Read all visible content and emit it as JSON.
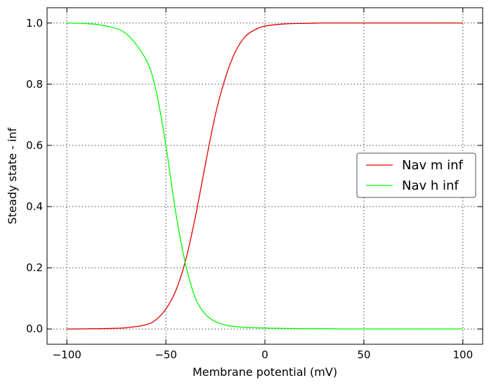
{
  "chart_data": {
    "type": "line",
    "xlabel": "Membrane potential (mV)",
    "ylabel": "Steady state - inf",
    "xlim": [
      -110,
      110
    ],
    "ylim": [
      -0.05,
      1.05
    ],
    "xticks": [
      -100,
      -50,
      0,
      50,
      100
    ],
    "xtick_labels": [
      "−100",
      "−50",
      "0",
      "50",
      "100"
    ],
    "yticks": [
      0.0,
      0.2,
      0.4,
      0.6,
      0.8,
      1.0
    ],
    "ytick_labels": [
      "0.0",
      "0.2",
      "0.4",
      "0.6",
      "0.8",
      "1.0"
    ],
    "grid": true,
    "legend_position": "center-right",
    "x": [
      -100,
      -90,
      -80,
      -70,
      -60,
      -55,
      -50,
      -45,
      -40,
      -35,
      -30,
      -25,
      -20,
      -15,
      -10,
      -5,
      0,
      10,
      20,
      30,
      40,
      50,
      60,
      70,
      80,
      90,
      100
    ],
    "series": [
      {
        "name": "Nav m inf",
        "color": "#e00000",
        "values": [
          0.0,
          0.0005,
          0.0015,
          0.004,
          0.014,
          0.03,
          0.065,
          0.125,
          0.225,
          0.37,
          0.54,
          0.7,
          0.82,
          0.905,
          0.955,
          0.978,
          0.99,
          0.997,
          0.999,
          1.0,
          1.0,
          1.0,
          1.0,
          1.0,
          1.0,
          1.0,
          1.0
        ]
      },
      {
        "name": "Nav h inf",
        "color": "#00ff00",
        "values": [
          1.0,
          0.998,
          0.99,
          0.965,
          0.88,
          0.78,
          0.6,
          0.38,
          0.21,
          0.1,
          0.048,
          0.024,
          0.013,
          0.008,
          0.005,
          0.004,
          0.003,
          0.002,
          0.001,
          0.001,
          0.0,
          0.0,
          0.0,
          0.0,
          0.0,
          0.0,
          0.0
        ]
      }
    ]
  }
}
